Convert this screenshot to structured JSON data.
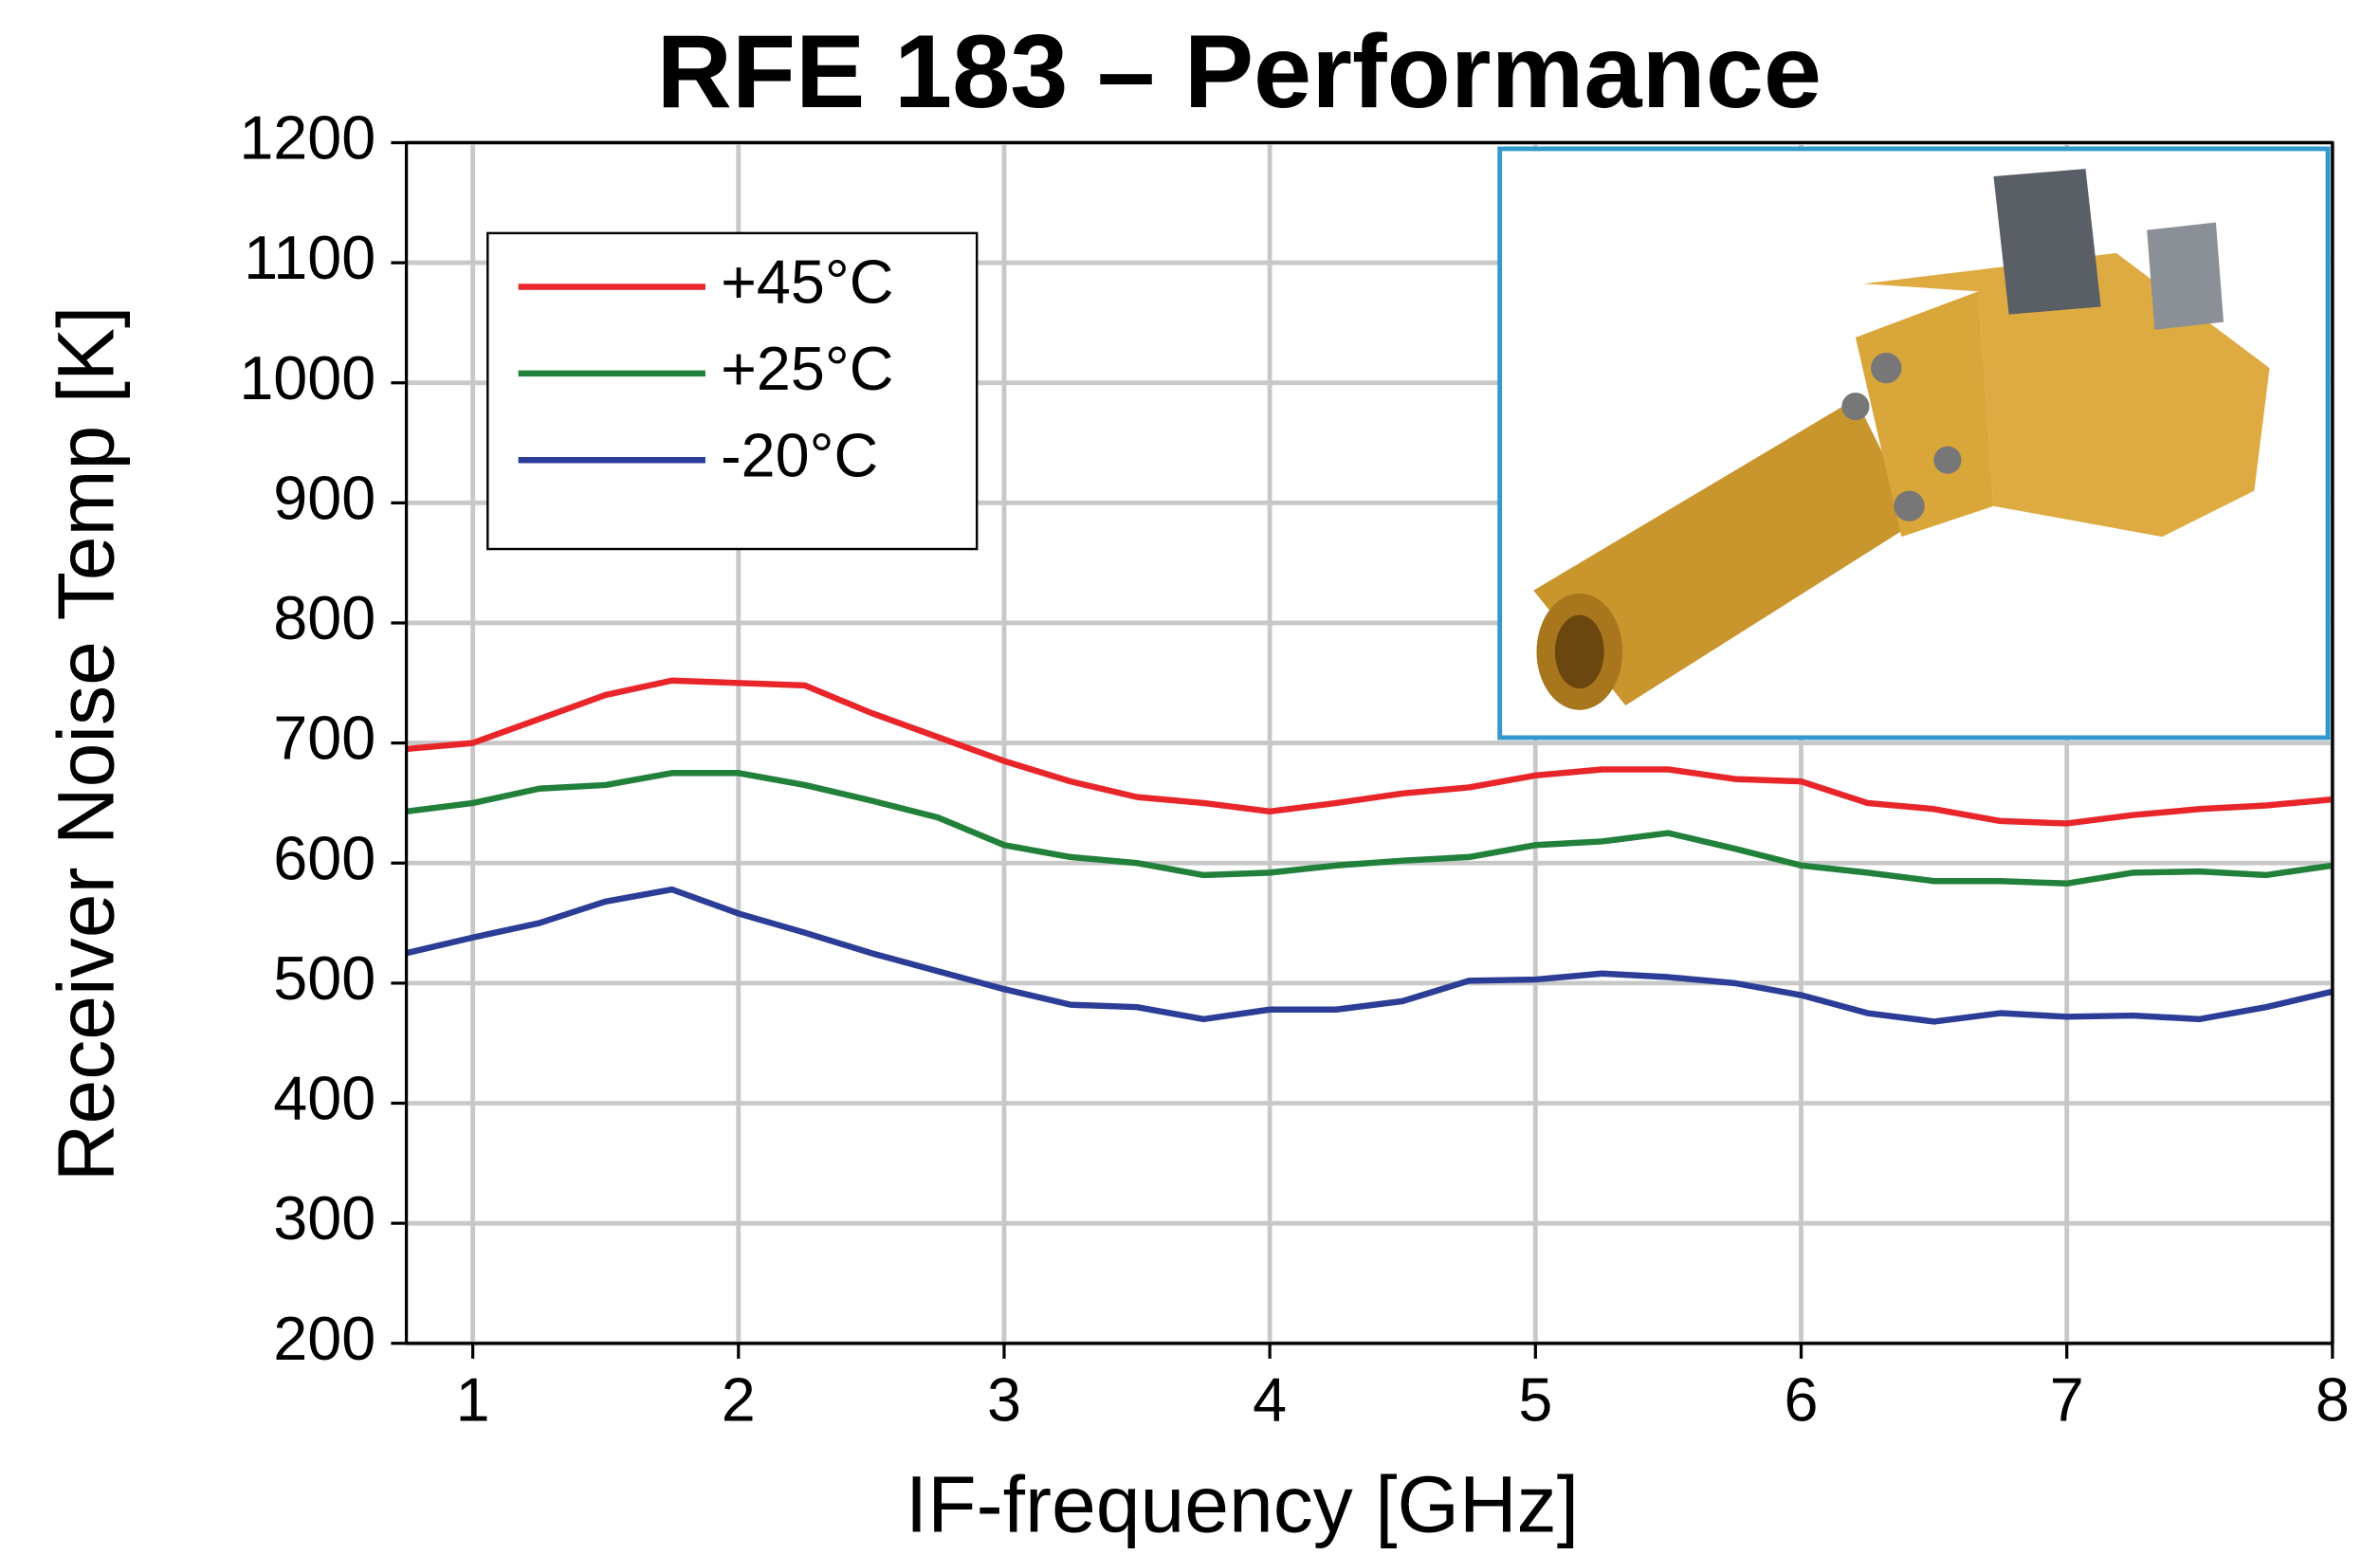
{
  "chart_data": {
    "type": "line",
    "title": "RFE 183 – Performance",
    "x_label": "IF-frequency [GHz]",
    "y_label": "Receiver Noise Temp [K]",
    "x": [
      0.75,
      1,
      1.25,
      1.5,
      1.75,
      2,
      2.25,
      2.5,
      2.75,
      3,
      3.25,
      3.5,
      3.75,
      4,
      4.25,
      4.5,
      4.75,
      5,
      5.25,
      5.5,
      5.75,
      6,
      6.25,
      6.5,
      6.75,
      7,
      7.25,
      7.5,
      7.75,
      8
    ],
    "series": [
      {
        "name": "+45°C",
        "color": "#e8262a",
        "values": [
          695,
          700,
          720,
          740,
          752,
          750,
          748,
          725,
          705,
          685,
          668,
          655,
          650,
          643,
          650,
          658,
          663,
          673,
          678,
          678,
          670,
          668,
          650,
          645,
          635,
          633,
          640,
          645,
          648,
          653
        ]
      },
      {
        "name": "+25°C",
        "color": "#21803a",
        "values": [
          643,
          650,
          662,
          665,
          675,
          675,
          665,
          652,
          638,
          615,
          605,
          600,
          590,
          592,
          598,
          602,
          605,
          615,
          618,
          625,
          612,
          598,
          592,
          585,
          585,
          583,
          592,
          593,
          590,
          598
        ]
      },
      {
        "name": "-20°C",
        "color": "#2b3d96",
        "values": [
          525,
          538,
          550,
          568,
          578,
          558,
          542,
          525,
          510,
          495,
          482,
          480,
          470,
          478,
          478,
          485,
          502,
          503,
          508,
          505,
          500,
          490,
          475,
          468,
          475,
          472,
          473,
          470,
          480,
          493
        ]
      }
    ],
    "xlim": [
      0.75,
      8
    ],
    "ylim": [
      200,
      1200
    ],
    "xticks": [
      1,
      2,
      3,
      4,
      5,
      6,
      7,
      8
    ],
    "yticks": [
      200,
      300,
      400,
      500,
      600,
      700,
      800,
      900,
      1000,
      1100,
      1200
    ],
    "grid": true,
    "legend": "upper-left"
  }
}
